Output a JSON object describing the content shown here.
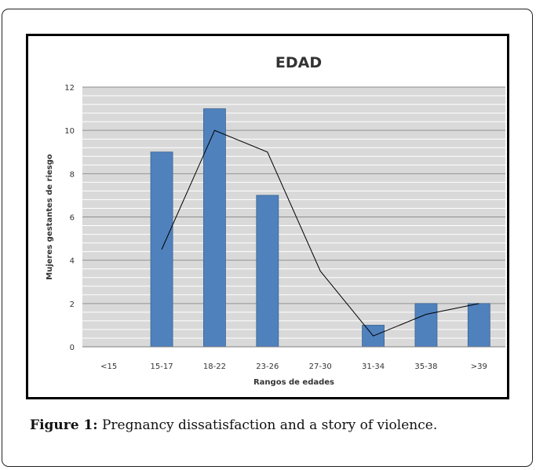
{
  "caption": {
    "label": "Figure 1:",
    "text": " Pregnancy dissatisfaction and a story of violence."
  },
  "chart_data": {
    "type": "bar",
    "title": "EDAD",
    "xlabel": "Rangos de edades",
    "ylabel": "Mujeres gestantes de riesgo",
    "categories": [
      "<15",
      "15-17",
      "18-22",
      "23-26",
      "27-30",
      "31-34",
      "35-38",
      ">39"
    ],
    "series": [
      {
        "values": [
          0,
          9,
          11,
          7,
          0,
          1,
          2,
          2
        ],
        "color": "#4f81bd",
        "kind": "bar"
      },
      {
        "values": [
          null,
          4.5,
          10,
          9,
          3.5,
          0.5,
          1.5,
          2
        ],
        "color": "#000000",
        "kind": "line"
      }
    ],
    "ylim": [
      0,
      12
    ],
    "yticks": [
      0,
      2,
      4,
      6,
      8,
      10,
      12
    ],
    "minor_grid_step": 0.4,
    "grid": true,
    "plot_background": "#d9d9d9",
    "legend": false
  }
}
